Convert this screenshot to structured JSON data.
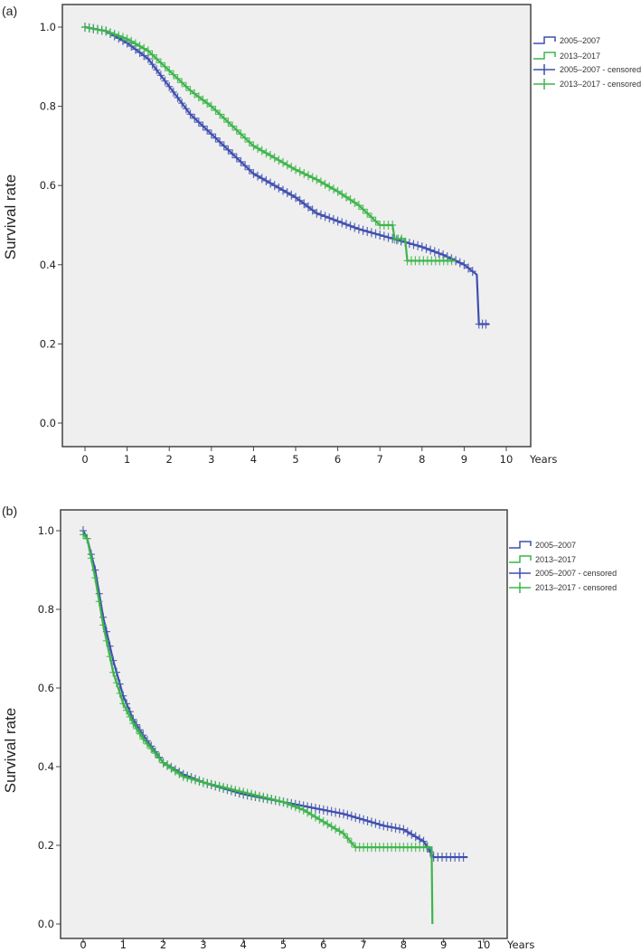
{
  "chart_data": [
    {
      "panel_label": "(a)",
      "type": "line",
      "subtype": "kaplan-meier step",
      "ylabel": "Survival rate",
      "xlabel": "Years",
      "xlim": [
        0,
        10
      ],
      "ylim": [
        0,
        1
      ],
      "xticks": [
        "0",
        "1",
        "2",
        "3",
        "4",
        "5",
        "6",
        "7",
        "8",
        "9",
        "10"
      ],
      "yticks": [
        "0.0",
        "0.2",
        "0.4",
        "0.6",
        "0.8",
        "1.0"
      ],
      "grid": false,
      "legend_position": "right",
      "background": "#efefef",
      "legend": [
        "2005–2007",
        "2013–2017",
        "2005–2007 - censored",
        "2013–2017 - censored"
      ],
      "series": [
        {
          "name": "2005–2007",
          "color": "#3f4fb0",
          "x": [
            0,
            0.5,
            1,
            1.5,
            2,
            2.5,
            3,
            3.5,
            4,
            4.5,
            5,
            5.5,
            6,
            6.5,
            7,
            7.5,
            8,
            8.5,
            9,
            9.3,
            9.35,
            9.6
          ],
          "y": [
            1,
            0.99,
            0.96,
            0.92,
            0.85,
            0.78,
            0.73,
            0.68,
            0.63,
            0.6,
            0.57,
            0.53,
            0.51,
            0.49,
            0.475,
            0.46,
            0.445,
            0.425,
            0.4,
            0.375,
            0.25,
            0.25
          ]
        },
        {
          "name": "2013–2017",
          "color": "#3cb54a",
          "x": [
            0,
            0.5,
            1,
            1.5,
            2,
            2.5,
            3,
            3.5,
            4,
            4.5,
            5,
            5.5,
            6,
            6.5,
            7,
            7.3,
            7.35,
            7.6,
            7.65,
            8.8
          ],
          "y": [
            1,
            0.99,
            0.97,
            0.94,
            0.89,
            0.84,
            0.8,
            0.75,
            0.7,
            0.67,
            0.64,
            0.615,
            0.585,
            0.55,
            0.5,
            0.5,
            0.465,
            0.465,
            0.41,
            0.41
          ]
        }
      ]
    },
    {
      "panel_label": "(b)",
      "type": "line",
      "subtype": "kaplan-meier step",
      "ylabel": "Survival rate",
      "xlabel": "Years",
      "xlim": [
        0,
        10
      ],
      "ylim": [
        0,
        1
      ],
      "xticks": [
        "0",
        "1",
        "2",
        "3",
        "4",
        "5",
        "6",
        "7",
        "8",
        "9",
        "10"
      ],
      "yticks": [
        "0.0",
        "0.2",
        "0.4",
        "0.6",
        "0.8",
        "1.0"
      ],
      "grid": false,
      "legend_position": "right",
      "background": "#efefef",
      "legend": [
        "2005–2007",
        "2013–2017",
        "2005–2007 - censored",
        "2013–2017 - censored"
      ],
      "series": [
        {
          "name": "2005–2007",
          "color": "#3f4fb0",
          "x": [
            0,
            0.1,
            0.3,
            0.5,
            0.75,
            1,
            1.25,
            1.5,
            2,
            2.5,
            3,
            4,
            5,
            6,
            6.5,
            7,
            7.5,
            8,
            8.5,
            8.75,
            9.6
          ],
          "y": [
            1,
            0.98,
            0.9,
            0.78,
            0.67,
            0.58,
            0.52,
            0.48,
            0.41,
            0.38,
            0.36,
            0.33,
            0.31,
            0.29,
            0.28,
            0.265,
            0.25,
            0.24,
            0.21,
            0.17,
            0.17
          ]
        },
        {
          "name": "2013–2017",
          "color": "#3cb54a",
          "x": [
            0,
            0.1,
            0.3,
            0.5,
            0.75,
            1,
            1.25,
            1.5,
            2,
            2.5,
            3,
            4,
            5,
            5.5,
            6,
            6.5,
            6.8,
            8.7,
            8.72
          ],
          "y": [
            0.99,
            0.98,
            0.88,
            0.76,
            0.64,
            0.56,
            0.51,
            0.47,
            0.41,
            0.375,
            0.36,
            0.335,
            0.31,
            0.29,
            0.26,
            0.23,
            0.195,
            0.195,
            0.0
          ]
        }
      ]
    }
  ]
}
